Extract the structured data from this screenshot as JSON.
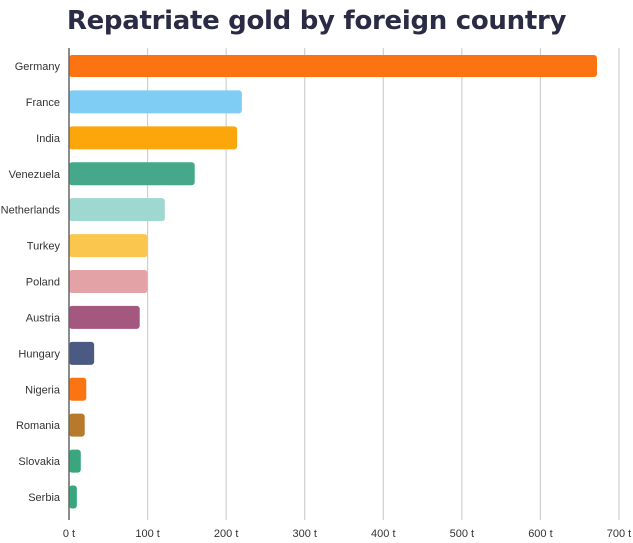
{
  "chart_data": {
    "type": "bar",
    "orientation": "horizontal",
    "title": "Repatriate gold by foreign country",
    "categories": [
      "Germany",
      "France",
      "India",
      "Venezuela",
      "Netherlands",
      "Turkey",
      "Poland",
      "Austria",
      "Hungary",
      "Nigeria",
      "Romania",
      "Slovakia",
      "Serbia"
    ],
    "values": [
      672,
      220,
      214,
      160,
      122,
      100,
      100,
      90,
      32,
      22,
      20,
      15,
      10
    ],
    "colors": [
      "#fc7312",
      "#7fcdf5",
      "#fba70b",
      "#45a88a",
      "#9fd8d1",
      "#fbc64d",
      "#e3a2a6",
      "#a4577f",
      "#4a5a83",
      "#fc7312",
      "#b77a2c",
      "#3aa67d",
      "#3aa67d"
    ],
    "xlim": [
      0,
      700
    ],
    "xticks": [
      0,
      100,
      200,
      300,
      400,
      500,
      600,
      700
    ],
    "tick_suffix": " t",
    "grid": true,
    "xlabel": "",
    "ylabel": ""
  }
}
